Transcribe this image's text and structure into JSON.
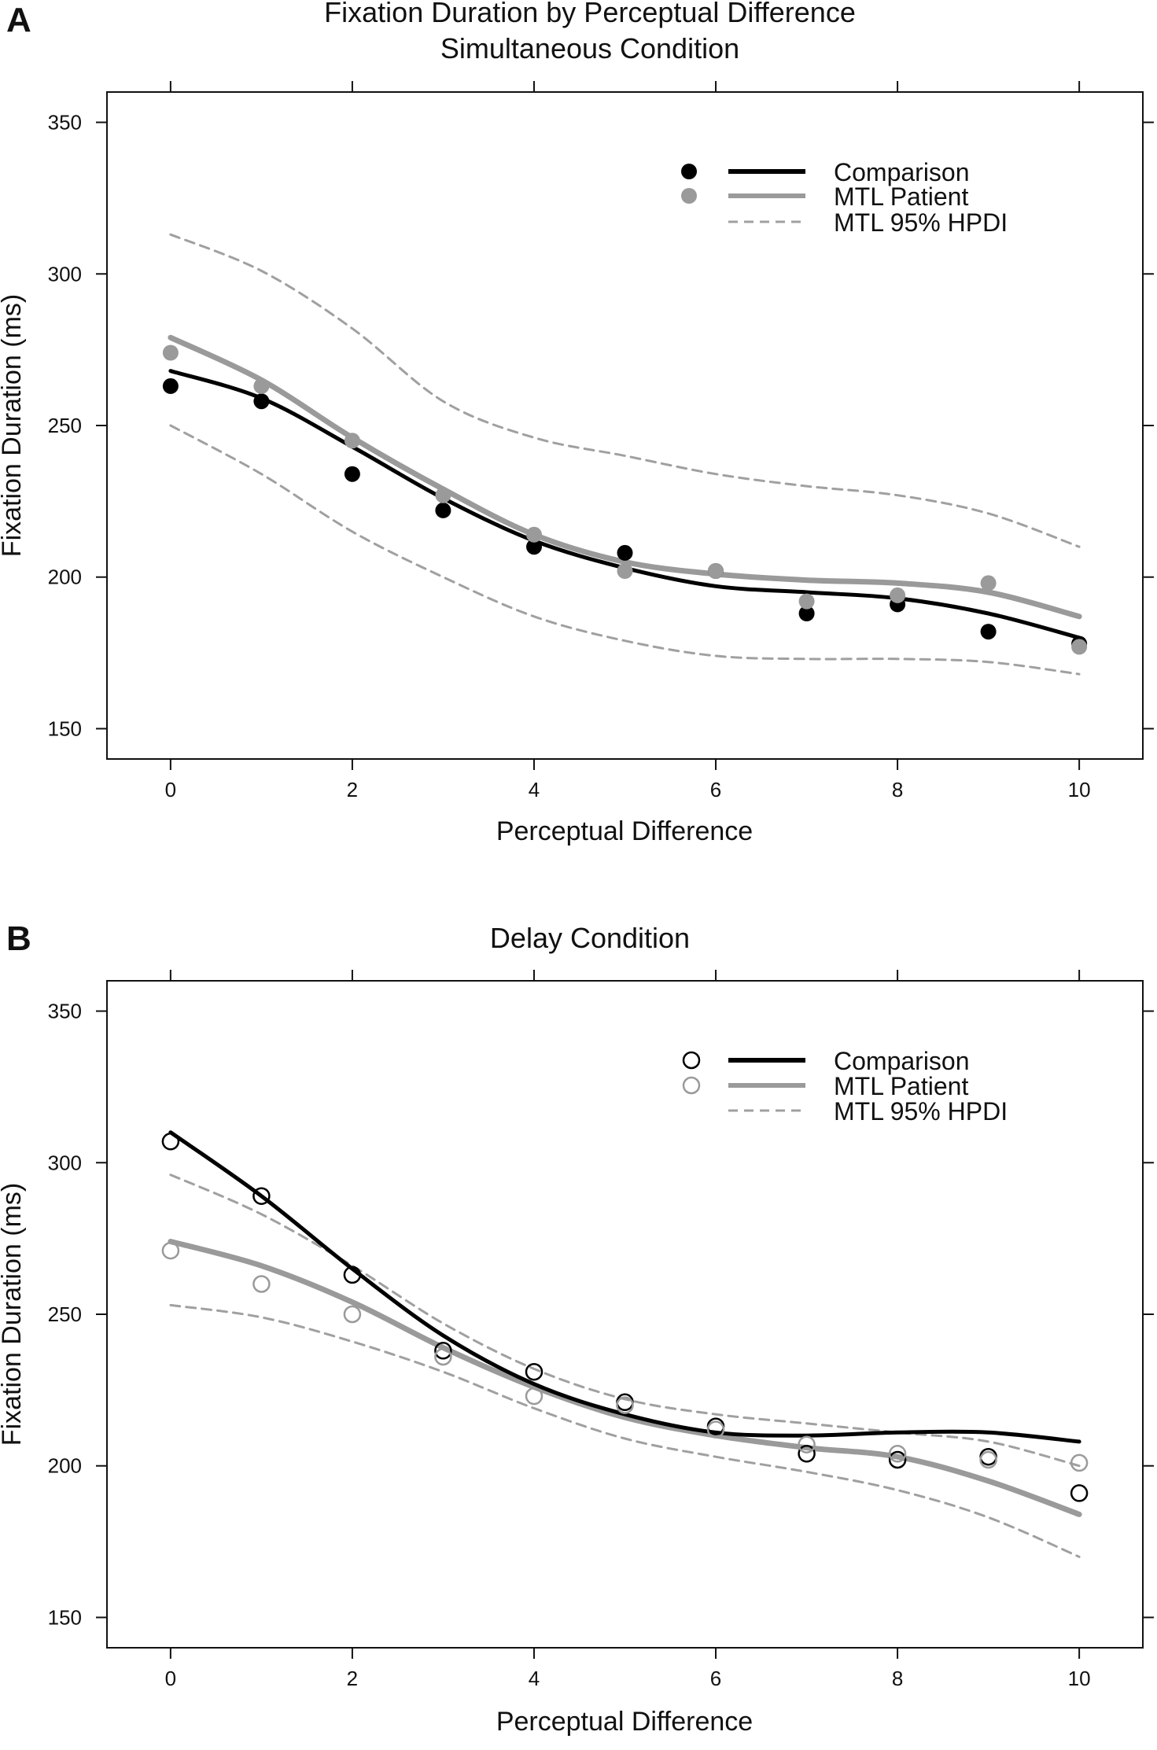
{
  "colors": {
    "comparison": "#000000",
    "mtl": "#9a9a9a",
    "hpdi": "#a0a0a0",
    "frame": "#111111"
  },
  "chart_data": [
    {
      "panel": "A",
      "type": "scatter",
      "title_lines": [
        "Fixation Duration by Perceptual Difference",
        "Simultaneous Condition"
      ],
      "xlabel": "Perceptual Difference",
      "ylabel": "Fixation Duration (ms)",
      "xlim": [
        -0.7,
        10.7
      ],
      "ylim": [
        140,
        360
      ],
      "xticks": [
        0,
        2,
        4,
        6,
        8,
        10
      ],
      "yticks": [
        150,
        200,
        250,
        300,
        350
      ],
      "grid": false,
      "marker": "filled",
      "legend": {
        "position": "top-right",
        "comparison": "Comparison",
        "mtl": "MTL Patient",
        "hpdi": "MTL 95% HPDI"
      },
      "series": [
        {
          "name": "Comparison points",
          "role": "comparison",
          "x": [
            0,
            1,
            2,
            3,
            4,
            5,
            6,
            7,
            8,
            9,
            10
          ],
          "y": [
            263,
            258,
            234,
            222,
            210,
            208,
            202,
            188,
            191,
            182,
            178
          ]
        },
        {
          "name": "MTL Patient points",
          "role": "mtl",
          "x": [
            0,
            1,
            2,
            3,
            4,
            5,
            6,
            7,
            8,
            9,
            10
          ],
          "y": [
            274,
            263,
            245,
            227,
            214,
            202,
            202,
            192,
            194,
            198,
            177
          ]
        }
      ],
      "curves": [
        {
          "name": "Comparison",
          "style": "comparison",
          "x": [
            0,
            1,
            2,
            3,
            4,
            5,
            6,
            7,
            8,
            9,
            10
          ],
          "y": [
            268,
            259,
            243,
            226,
            212,
            203,
            197,
            195,
            193,
            188,
            180
          ]
        },
        {
          "name": "MTL Patient",
          "style": "mtl",
          "x": [
            0,
            1,
            2,
            3,
            4,
            5,
            6,
            7,
            8,
            9,
            10
          ],
          "y": [
            279,
            265,
            246,
            229,
            214,
            205,
            201,
            199,
            198,
            195,
            187
          ]
        },
        {
          "name": "MTL 95% HPDI upper",
          "style": "hpdi",
          "x": [
            0,
            1,
            2,
            3,
            4,
            5,
            6,
            7,
            8,
            9,
            10
          ],
          "y": [
            313,
            301,
            282,
            258,
            246,
            240,
            234,
            230,
            227,
            221,
            210
          ]
        },
        {
          "name": "MTL 95% HPDI lower",
          "style": "hpdi",
          "x": [
            0,
            1,
            2,
            3,
            4,
            5,
            6,
            7,
            8,
            9,
            10
          ],
          "y": [
            250,
            234,
            215,
            200,
            187,
            179,
            174,
            173,
            173,
            172,
            168
          ]
        }
      ]
    },
    {
      "panel": "B",
      "type": "scatter",
      "title_lines": [
        "Delay Condition"
      ],
      "xlabel": "Perceptual Difference",
      "ylabel": "Fixation Duration (ms)",
      "xlim": [
        -0.7,
        10.7
      ],
      "ylim": [
        140,
        360
      ],
      "xticks": [
        0,
        2,
        4,
        6,
        8,
        10
      ],
      "yticks": [
        150,
        200,
        250,
        300,
        350
      ],
      "grid": false,
      "marker": "open",
      "legend": {
        "position": "top-right",
        "comparison": "Comparison",
        "mtl": "MTL Patient",
        "hpdi": "MTL 95% HPDI"
      },
      "series": [
        {
          "name": "Comparison points",
          "role": "comparison",
          "x": [
            0,
            1,
            2,
            3,
            4,
            5,
            6,
            7,
            8,
            9,
            10
          ],
          "y": [
            307,
            289,
            263,
            238,
            231,
            221,
            213,
            204,
            202,
            203,
            191
          ]
        },
        {
          "name": "MTL Patient points",
          "role": "mtl",
          "x": [
            0,
            1,
            2,
            3,
            4,
            5,
            6,
            7,
            8,
            9,
            10
          ],
          "y": [
            271,
            260,
            250,
            236,
            223,
            220,
            212,
            207,
            204,
            202,
            201
          ]
        }
      ],
      "curves": [
        {
          "name": "Comparison",
          "style": "comparison",
          "x": [
            0,
            1,
            2,
            3,
            4,
            5,
            6,
            7,
            8,
            9,
            10
          ],
          "y": [
            310,
            289,
            265,
            243,
            227,
            217,
            211,
            210,
            211,
            211,
            208
          ]
        },
        {
          "name": "MTL Patient",
          "style": "mtl",
          "x": [
            0,
            1,
            2,
            3,
            4,
            5,
            6,
            7,
            8,
            9,
            10
          ],
          "y": [
            274,
            266,
            254,
            239,
            226,
            216,
            210,
            206,
            203,
            195,
            184
          ]
        },
        {
          "name": "MTL 95% HPDI upper",
          "style": "hpdi",
          "x": [
            0,
            1,
            2,
            3,
            4,
            5,
            6,
            7,
            8,
            9,
            10
          ],
          "y": [
            296,
            283,
            266,
            247,
            232,
            222,
            217,
            214,
            211,
            208,
            200
          ]
        },
        {
          "name": "MTL 95% HPDI lower",
          "style": "hpdi",
          "x": [
            0,
            1,
            2,
            3,
            4,
            5,
            6,
            7,
            8,
            9,
            10
          ],
          "y": [
            253,
            249,
            241,
            231,
            219,
            209,
            203,
            198,
            192,
            183,
            170
          ]
        }
      ]
    }
  ]
}
